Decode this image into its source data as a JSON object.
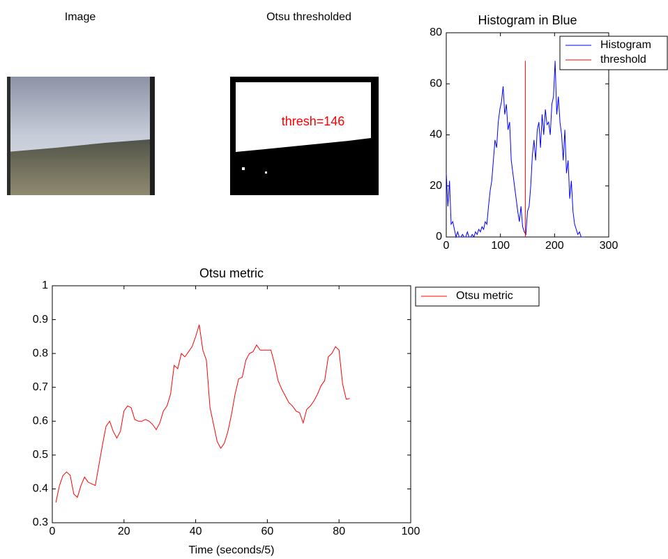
{
  "image_panels": [
    {
      "title": "Image"
    },
    {
      "title": "Otsu thresholded",
      "annotation": "thresh=146"
    }
  ],
  "chart_data": [
    {
      "type": "line",
      "title": "Histogram in Blue",
      "legend": "upper right",
      "xlim": [
        0,
        300
      ],
      "xticks": [
        0,
        100,
        200,
        300
      ],
      "ylim": [
        0,
        80
      ],
      "yticks": [
        0,
        20,
        40,
        60,
        80
      ],
      "series": [
        {
          "name": "Histogram",
          "color": "#0000ff",
          "x": [
            0,
            3,
            6,
            9,
            12,
            15,
            18,
            21,
            24,
            27,
            30,
            33,
            36,
            39,
            42,
            45,
            48,
            51,
            54,
            57,
            60,
            63,
            66,
            69,
            72,
            75,
            78,
            81,
            84,
            87,
            90,
            93,
            96,
            99,
            102,
            105,
            108,
            111,
            114,
            117,
            120,
            123,
            126,
            129,
            132,
            135,
            138,
            141,
            144,
            147,
            150,
            153,
            156,
            159,
            162,
            165,
            168,
            171,
            174,
            177,
            180,
            183,
            186,
            189,
            192,
            195,
            198,
            201,
            204,
            207,
            210,
            213,
            216,
            219,
            222,
            225,
            228,
            231,
            234,
            237,
            240,
            243,
            246,
            249,
            252,
            255
          ],
          "values": [
            25,
            12,
            22,
            5,
            6,
            3,
            0,
            2,
            0,
            0,
            1,
            0,
            0,
            2,
            0,
            0,
            1,
            0,
            2,
            1,
            3,
            2,
            4,
            3,
            6,
            5,
            12,
            18,
            22,
            30,
            38,
            35,
            45,
            50,
            53,
            59,
            48,
            52,
            42,
            45,
            30,
            25,
            20,
            15,
            10,
            6,
            12,
            4,
            2,
            1,
            10,
            12,
            20,
            32,
            38,
            30,
            42,
            45,
            35,
            48,
            40,
            50,
            44,
            45,
            40,
            52,
            55,
            69,
            48,
            55,
            45,
            40,
            30,
            42,
            25,
            30,
            15,
            22,
            10,
            5,
            3,
            1,
            2,
            0,
            0,
            0
          ]
        },
        {
          "name": "threshold",
          "color": "#ff0000",
          "x": [
            146,
            146
          ],
          "values": [
            0,
            69
          ]
        }
      ]
    },
    {
      "type": "line",
      "title": "Otsu metric",
      "x_label": "Time (seconds/5)",
      "legend": "outside upper right",
      "xlim": [
        0,
        100
      ],
      "xticks": [
        0,
        20,
        40,
        60,
        80,
        100
      ],
      "ylim": [
        0.3,
        1
      ],
      "yticks": [
        0.3,
        0.4,
        0.5,
        0.6,
        0.7,
        0.8,
        0.9,
        1
      ],
      "series": [
        {
          "name": "Otsu metric",
          "color": "#ff0000",
          "x": [
            1,
            2,
            3,
            4,
            5,
            6,
            7,
            8,
            9,
            10,
            11,
            12,
            13,
            14,
            15,
            16,
            17,
            18,
            19,
            20,
            21,
            22,
            23,
            24,
            25,
            26,
            27,
            28,
            29,
            30,
            31,
            32,
            33,
            34,
            35,
            36,
            37,
            38,
            39,
            40,
            41,
            42,
            43,
            44,
            45,
            46,
            47,
            48,
            49,
            50,
            51,
            52,
            53,
            54,
            55,
            56,
            57,
            58,
            59,
            60,
            61,
            62,
            63,
            64,
            65,
            66,
            67,
            68,
            69,
            70,
            71,
            72,
            73,
            74,
            75,
            76,
            77,
            78,
            79,
            80,
            81,
            82,
            83
          ],
          "values": [
            0.36,
            0.41,
            0.44,
            0.45,
            0.44,
            0.385,
            0.375,
            0.41,
            0.435,
            0.42,
            0.415,
            0.41,
            0.47,
            0.53,
            0.585,
            0.6,
            0.57,
            0.55,
            0.57,
            0.63,
            0.645,
            0.64,
            0.605,
            0.6,
            0.6,
            0.605,
            0.6,
            0.59,
            0.575,
            0.595,
            0.63,
            0.645,
            0.68,
            0.765,
            0.755,
            0.8,
            0.79,
            0.805,
            0.82,
            0.85,
            0.885,
            0.81,
            0.78,
            0.64,
            0.59,
            0.54,
            0.52,
            0.535,
            0.57,
            0.62,
            0.68,
            0.725,
            0.73,
            0.78,
            0.8,
            0.805,
            0.825,
            0.81,
            0.81,
            0.81,
            0.81,
            0.77,
            0.72,
            0.695,
            0.675,
            0.655,
            0.645,
            0.63,
            0.625,
            0.595,
            0.635,
            0.645,
            0.66,
            0.68,
            0.705,
            0.72,
            0.79,
            0.8,
            0.82,
            0.81,
            0.71,
            0.665,
            0.667
          ]
        }
      ]
    }
  ]
}
